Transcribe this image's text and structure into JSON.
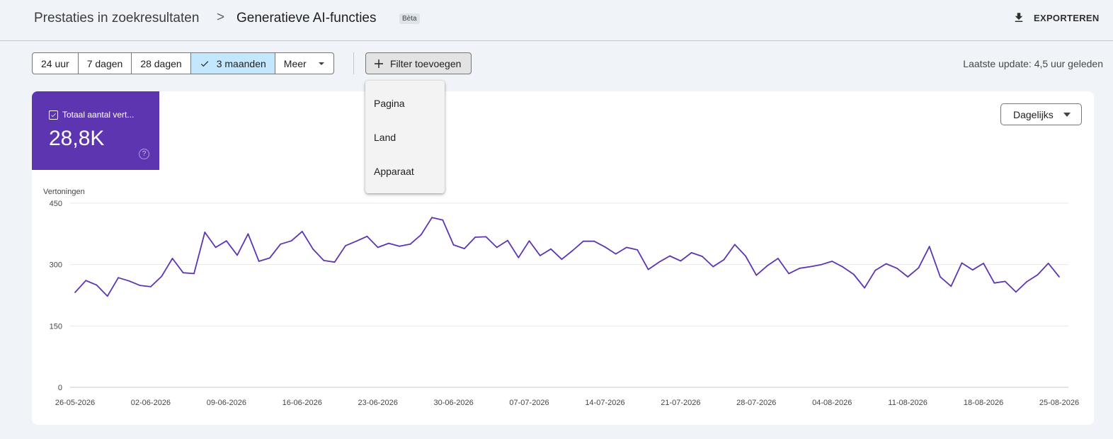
{
  "header": {
    "breadcrumb_parent": "Prestaties in zoekresultaten",
    "breadcrumb_separator": ">",
    "title": "Generatieve AI-functies",
    "badge": "Bèta",
    "export_label": "EXPORTEREN",
    "export_icon": "download-icon"
  },
  "toolbar": {
    "ranges": [
      {
        "label": "24 uur"
      },
      {
        "label": "7 dagen"
      },
      {
        "label": "28 dagen"
      },
      {
        "label": "3 maanden",
        "selected": true
      },
      {
        "label": "Meer"
      }
    ],
    "filter_label": "Filter toevoegen",
    "last_update": "Laatste update: 4,5 uur geleden"
  },
  "filter_menu": {
    "items": [
      "Pagina",
      "Land",
      "Apparaat"
    ]
  },
  "metric": {
    "label": "Totaal aantal vert...",
    "value": "28,8K",
    "help": "?",
    "color": "#5e35b1"
  },
  "granularity": {
    "selected": "Dagelijks"
  },
  "chart_data": {
    "type": "line",
    "ylabel": "Vertoningen",
    "ylim": [
      0,
      450
    ],
    "yticks": [
      0,
      150,
      300,
      450
    ],
    "xlabels": [
      "26-05-2026",
      "02-06-2026",
      "09-06-2026",
      "16-06-2026",
      "23-06-2026",
      "30-06-2026",
      "07-07-2026",
      "14-07-2026",
      "21-07-2026",
      "28-07-2026",
      "04-08-2026",
      "11-08-2026",
      "18-08-2026",
      "25-08-2026"
    ],
    "x_start": "2026-05-26",
    "x_end": "2026-08-25",
    "line_color": "#5e35b1",
    "grid": true,
    "series": [
      {
        "values": [
          232,
          261,
          250,
          223,
          268,
          260,
          249,
          246,
          271,
          315,
          280,
          278,
          379,
          342,
          358,
          323,
          375,
          308,
          316,
          350,
          358,
          381,
          338,
          310,
          306,
          346,
          357,
          369,
          342,
          352,
          345,
          350,
          373,
          415,
          409,
          348,
          339,
          367,
          368,
          342,
          359,
          317,
          358,
          322,
          338,
          313,
          334,
          357,
          357,
          343,
          326,
          342,
          336,
          288,
          306,
          321,
          309,
          329,
          320,
          295,
          312,
          349,
          321,
          274,
          297,
          315,
          278,
          291,
          295,
          300,
          308,
          294,
          276,
          243,
          286,
          302,
          291,
          270,
          292,
          344,
          270,
          247,
          304,
          287,
          303,
          255,
          259,
          233,
          258,
          275,
          303,
          270
        ]
      }
    ]
  }
}
